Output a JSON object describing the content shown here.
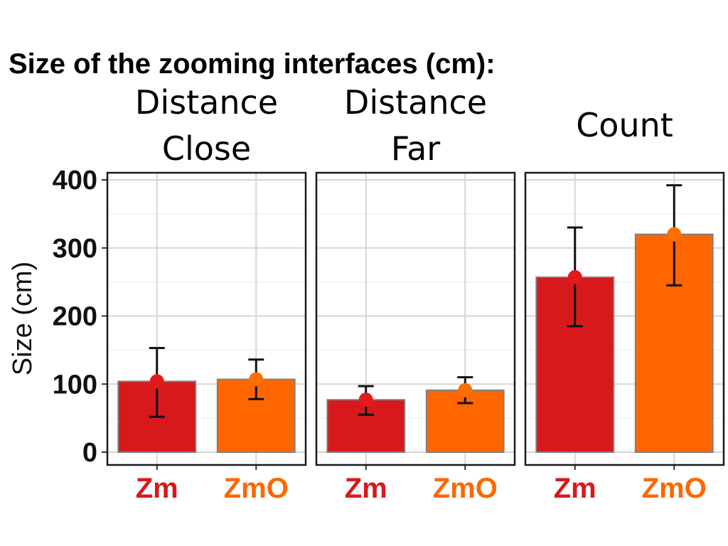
{
  "chart_data": {
    "type": "bar",
    "title": "Size of the zooming interfaces (cm):",
    "ylabel": "Size (cm)",
    "ylim": [
      0,
      400
    ],
    "yticks": [
      0,
      100,
      200,
      300,
      400
    ],
    "grid": true,
    "facets": [
      {
        "title_lines": [
          "Distance",
          "Close"
        ],
        "categories": [
          "Zm",
          "ZmO"
        ],
        "values": [
          104,
          107
        ],
        "error_low": [
          52,
          78
        ],
        "error_high": [
          153,
          136
        ]
      },
      {
        "title_lines": [
          "Distance",
          "Far"
        ],
        "categories": [
          "Zm",
          "ZmO"
        ],
        "values": [
          77,
          91
        ],
        "error_low": [
          55,
          72
        ],
        "error_high": [
          97,
          110
        ]
      },
      {
        "title_lines": [
          "Count"
        ],
        "categories": [
          "Zm",
          "ZmO"
        ],
        "values": [
          257,
          320
        ],
        "error_low": [
          185,
          245
        ],
        "error_high": [
          330,
          392
        ]
      }
    ],
    "colors": {
      "Zm": "#d7191c",
      "ZmO": "#ff6600",
      "point_Zm": "#e31a1c",
      "point_ZmO": "#ff6f00"
    }
  }
}
